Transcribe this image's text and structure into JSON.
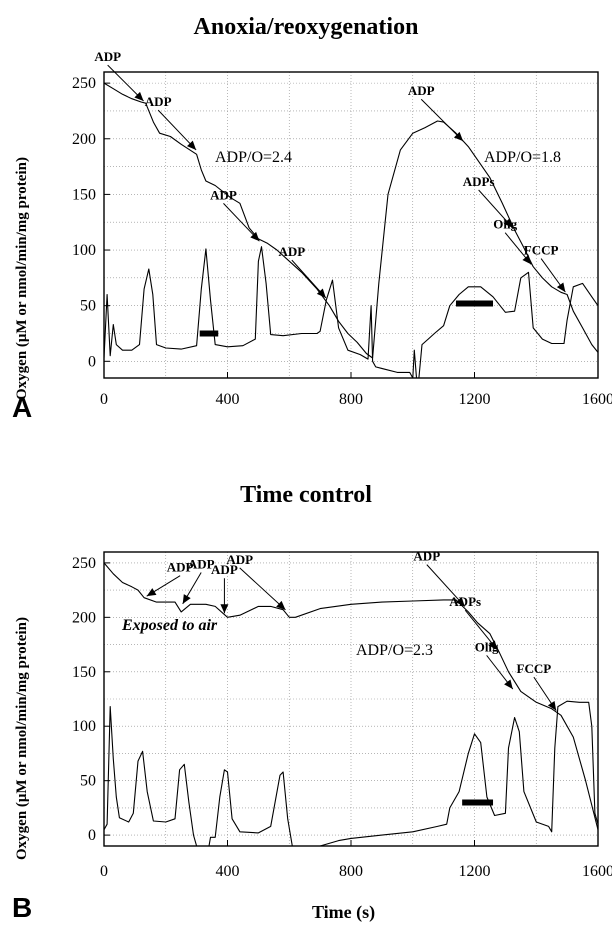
{
  "chart_data": [
    {
      "type": "line",
      "panel_letter": "A",
      "title": "Anoxia/reoxygenation",
      "ylabel": "Oxygen (μM or nmol/min/mg protein)",
      "xlabel": "",
      "xlim": [
        0,
        1600
      ],
      "ylim": [
        -15,
        260
      ],
      "xticks": [
        0,
        400,
        800,
        1200,
        1600
      ],
      "yticks": [
        0,
        50,
        100,
        150,
        200,
        250
      ],
      "grid": true,
      "series": [
        {
          "name": "",
          "points": [
            [
              0,
              250
            ],
            [
              30,
              245
            ],
            [
              60,
              240
            ],
            [
              90,
              236
            ],
            [
              120,
              233
            ],
            [
              135,
              232
            ],
            [
              160,
              215
            ],
            [
              180,
              205
            ],
            [
              215,
              202
            ],
            [
              250,
              195
            ],
            [
              300,
              186
            ],
            [
              315,
              172
            ],
            [
              330,
              162
            ],
            [
              360,
              158
            ],
            [
              410,
              147
            ],
            [
              440,
              142
            ],
            [
              470,
              120
            ],
            [
              500,
              110
            ],
            [
              530,
              106
            ],
            [
              560,
              100
            ],
            [
              600,
              90
            ],
            [
              640,
              80
            ],
            [
              690,
              65
            ],
            [
              730,
              50
            ],
            [
              760,
              36
            ],
            [
              790,
              25
            ],
            [
              820,
              17
            ],
            [
              850,
              7
            ],
            [
              870,
              3
            ],
            [
              890,
              70
            ],
            [
              920,
              150
            ],
            [
              960,
              190
            ],
            [
              1000,
              205
            ],
            [
              1040,
              210
            ],
            [
              1080,
              216
            ],
            [
              1100,
              215
            ],
            [
              1140,
              205
            ],
            [
              1180,
              193
            ],
            [
              1210,
              181
            ],
            [
              1250,
              165
            ],
            [
              1290,
              142
            ],
            [
              1330,
              118
            ],
            [
              1360,
              102
            ],
            [
              1390,
              85
            ],
            [
              1420,
              75
            ],
            [
              1450,
              67
            ],
            [
              1480,
              62
            ],
            [
              1500,
              60
            ],
            [
              1520,
              45
            ],
            [
              1550,
              30
            ],
            [
              1580,
              15
            ],
            [
              1600,
              8
            ]
          ]
        },
        {
          "name": "",
          "points": [
            [
              0,
              3
            ],
            [
              10,
              60
            ],
            [
              20,
              5
            ],
            [
              30,
              33
            ],
            [
              40,
              15
            ],
            [
              60,
              10
            ],
            [
              90,
              10
            ],
            [
              115,
              15
            ],
            [
              130,
              65
            ],
            [
              145,
              83
            ],
            [
              158,
              60
            ],
            [
              170,
              15
            ],
            [
              200,
              12
            ],
            [
              250,
              11
            ],
            [
              300,
              14
            ],
            [
              315,
              65
            ],
            [
              330,
              101
            ],
            [
              345,
              55
            ],
            [
              360,
              15
            ],
            [
              400,
              13
            ],
            [
              450,
              14
            ],
            [
              490,
              20
            ],
            [
              500,
              90
            ],
            [
              510,
              103
            ],
            [
              525,
              70
            ],
            [
              540,
              24
            ],
            [
              580,
              23
            ],
            [
              640,
              25
            ],
            [
              690,
              25
            ],
            [
              700,
              27
            ],
            [
              720,
              55
            ],
            [
              740,
              73
            ],
            [
              760,
              30
            ],
            [
              790,
              10
            ],
            [
              830,
              6
            ],
            [
              855,
              2
            ],
            [
              865,
              50
            ],
            [
              870,
              0
            ],
            [
              880,
              -5
            ],
            [
              950,
              -10
            ],
            [
              990,
              -10
            ],
            [
              1000,
              -15
            ],
            [
              1005,
              10
            ],
            [
              1012,
              -15
            ],
            [
              1020,
              -15
            ],
            [
              1030,
              15
            ],
            [
              1050,
              20
            ],
            [
              1070,
              25
            ],
            [
              1100,
              32
            ],
            [
              1120,
              50
            ],
            [
              1150,
              60
            ],
            [
              1180,
              67
            ],
            [
              1220,
              67
            ],
            [
              1260,
              58
            ],
            [
              1300,
              44
            ],
            [
              1330,
              45
            ],
            [
              1350,
              75
            ],
            [
              1375,
              80
            ],
            [
              1390,
              30
            ],
            [
              1420,
              20
            ],
            [
              1450,
              16
            ],
            [
              1490,
              16
            ],
            [
              1500,
              37
            ],
            [
              1520,
              67
            ],
            [
              1550,
              70
            ],
            [
              1580,
              58
            ],
            [
              1600,
              50
            ]
          ]
        }
      ],
      "annotations": [
        {
          "text": "ADP",
          "x": 135,
          "y": 232
        },
        {
          "text": "ADP",
          "x": 305,
          "y": 188
        },
        {
          "text": "ADP",
          "x": 510,
          "y": 106
        },
        {
          "text": "ADP",
          "x": 725,
          "y": 55
        },
        {
          "text": "ADP",
          "x": 1170,
          "y": 196
        },
        {
          "text": "ADPs",
          "x": 1330,
          "y": 118
        },
        {
          "text": "Olig",
          "x": 1390,
          "y": 85
        },
        {
          "text": "FCCP",
          "x": 1500,
          "y": 60
        },
        {
          "text": "ADP/O=2.4"
        },
        {
          "text": "ADP/O=1.8"
        }
      ],
      "markers": [
        {
          "x0": 310,
          "x1": 370,
          "y": 25
        },
        {
          "x0": 1140,
          "x1": 1260,
          "y": 52
        }
      ]
    },
    {
      "type": "line",
      "panel_letter": "B",
      "title": "Time control",
      "ylabel": "Oxygen (μM or nmol/min/mg protein)",
      "xlabel": "Time (s)",
      "xlim": [
        0,
        1600
      ],
      "ylim": [
        -10,
        260
      ],
      "xticks": [
        0,
        400,
        800,
        1200,
        1600
      ],
      "yticks": [
        0,
        50,
        100,
        150,
        200,
        250
      ],
      "grid": true,
      "series": [
        {
          "name": "",
          "points": [
            [
              0,
              250
            ],
            [
              30,
              240
            ],
            [
              60,
              232
            ],
            [
              90,
              228
            ],
            [
              110,
              225
            ],
            [
              130,
              218
            ],
            [
              170,
              214
            ],
            [
              230,
              214
            ],
            [
              250,
              205
            ],
            [
              280,
              212
            ],
            [
              330,
              212
            ],
            [
              360,
              210
            ],
            [
              400,
              200
            ],
            [
              440,
              202
            ],
            [
              500,
              210
            ],
            [
              540,
              210
            ],
            [
              580,
              207
            ],
            [
              600,
              200
            ],
            [
              620,
              200
            ],
            [
              700,
              208
            ],
            [
              800,
              212
            ],
            [
              900,
              214
            ],
            [
              1000,
              215
            ],
            [
              1100,
              216
            ],
            [
              1140,
              216
            ],
            [
              1180,
              205
            ],
            [
              1210,
              195
            ],
            [
              1250,
              185
            ],
            [
              1280,
              168
            ],
            [
              1310,
              150
            ],
            [
              1350,
              132
            ],
            [
              1400,
              122
            ],
            [
              1450,
              116
            ],
            [
              1480,
              110
            ],
            [
              1520,
              90
            ],
            [
              1560,
              50
            ],
            [
              1600,
              5
            ]
          ]
        },
        {
          "name": "",
          "points": [
            [
              0,
              5
            ],
            [
              10,
              10
            ],
            [
              20,
              118
            ],
            [
              30,
              70
            ],
            [
              40,
              35
            ],
            [
              50,
              16
            ],
            [
              80,
              12
            ],
            [
              95,
              20
            ],
            [
              110,
              68
            ],
            [
              125,
              77
            ],
            [
              140,
              40
            ],
            [
              160,
              13
            ],
            [
              200,
              12
            ],
            [
              230,
              15
            ],
            [
              245,
              60
            ],
            [
              260,
              65
            ],
            [
              275,
              30
            ],
            [
              290,
              0
            ],
            [
              300,
              -10
            ],
            [
              340,
              -10
            ],
            [
              345,
              -2
            ],
            [
              360,
              -2
            ],
            [
              375,
              35
            ],
            [
              390,
              60
            ],
            [
              400,
              58
            ],
            [
              415,
              15
            ],
            [
              440,
              3
            ],
            [
              500,
              2
            ],
            [
              540,
              8
            ],
            [
              570,
              55
            ],
            [
              580,
              58
            ],
            [
              595,
              15
            ],
            [
              610,
              -10
            ],
            [
              700,
              -10
            ],
            [
              760,
              -5
            ],
            [
              800,
              -3
            ],
            [
              900,
              0
            ],
            [
              1000,
              3
            ],
            [
              1080,
              8
            ],
            [
              1110,
              10
            ],
            [
              1120,
              25
            ],
            [
              1150,
              40
            ],
            [
              1180,
              75
            ],
            [
              1200,
              93
            ],
            [
              1220,
              85
            ],
            [
              1240,
              35
            ],
            [
              1265,
              18
            ],
            [
              1300,
              20
            ],
            [
              1310,
              80
            ],
            [
              1330,
              108
            ],
            [
              1345,
              95
            ],
            [
              1360,
              40
            ],
            [
              1400,
              12
            ],
            [
              1440,
              8
            ],
            [
              1450,
              3
            ],
            [
              1460,
              80
            ],
            [
              1470,
              118
            ],
            [
              1500,
              123
            ],
            [
              1540,
              122
            ],
            [
              1570,
              122
            ],
            [
              1580,
              100
            ],
            [
              1590,
              20
            ],
            [
              1600,
              10
            ]
          ]
        }
      ],
      "annotations": [
        {
          "text": "ADP",
          "x": 130,
          "y": 218
        },
        {
          "text": "ADP",
          "x": 250,
          "y": 210
        },
        {
          "text": "ADP",
          "x": 390,
          "y": 201
        },
        {
          "text": "ADP",
          "x": 595,
          "y": 205
        },
        {
          "text": "ADP",
          "x": 1175,
          "y": 208
        },
        {
          "text": "ADPs",
          "x": 1280,
          "y": 168
        },
        {
          "text": "Olig",
          "x": 1330,
          "y": 132
        },
        {
          "text": "FCCP",
          "x": 1470,
          "y": 112
        },
        {
          "text": "Exposed to air"
        },
        {
          "text": "ADP/O=2.3"
        }
      ],
      "markers": [
        {
          "x0": 1160,
          "x1": 1260,
          "y": 30
        }
      ]
    }
  ]
}
